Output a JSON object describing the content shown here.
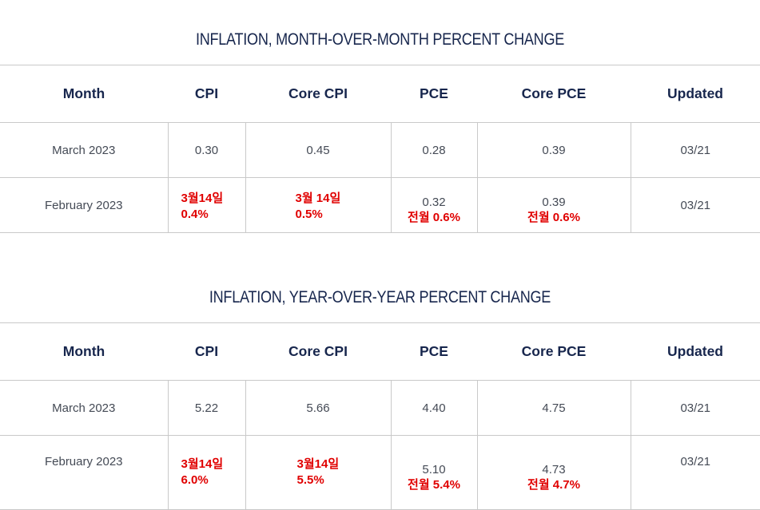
{
  "tables": [
    {
      "title": "INFLATION, MONTH-OVER-MONTH PERCENT CHANGE",
      "headers": [
        "Month",
        "CPI",
        "Core CPI",
        "PCE",
        "Core PCE",
        "Updated"
      ],
      "rows": [
        {
          "month": "March 2023",
          "cpi": "0.30",
          "core_cpi": "0.45",
          "pce": "0.28",
          "core_pce": "0.39",
          "updated": "03/21"
        },
        {
          "month": "February 2023",
          "cpi": "",
          "core_cpi": "",
          "pce": "0.32",
          "core_pce": "0.39",
          "updated": "03/21"
        }
      ],
      "annotations": {
        "cpi_l1": "3월14일",
        "cpi_l2": "0.4%",
        "core_cpi_l1": "3월 14일",
        "core_cpi_l2": "0.5%",
        "pce": "전월 0.6%",
        "core_pce": "전월 0.6%"
      }
    },
    {
      "title": "INFLATION, YEAR-OVER-YEAR PERCENT CHANGE",
      "headers": [
        "Month",
        "CPI",
        "Core CPI",
        "PCE",
        "Core PCE",
        "Updated"
      ],
      "rows": [
        {
          "month": "March 2023",
          "cpi": "5.22",
          "core_cpi": "5.66",
          "pce": "4.40",
          "core_pce": "4.75",
          "updated": "03/21"
        },
        {
          "month": "February 2023",
          "cpi": "",
          "core_cpi": "",
          "pce": "5.10",
          "core_pce": "4.73",
          "updated": "03/21"
        }
      ],
      "annotations": {
        "cpi_l1": "3월14일",
        "cpi_l2": "6.0%",
        "core_cpi_l1": "3월14일",
        "core_cpi_l2": "5.5%",
        "pce": "전월 5.4%",
        "core_pce": "전월 4.7%"
      }
    }
  ],
  "colors": {
    "title": "#17264d",
    "annotation": "#e00000",
    "border": "#c9c9c9"
  }
}
